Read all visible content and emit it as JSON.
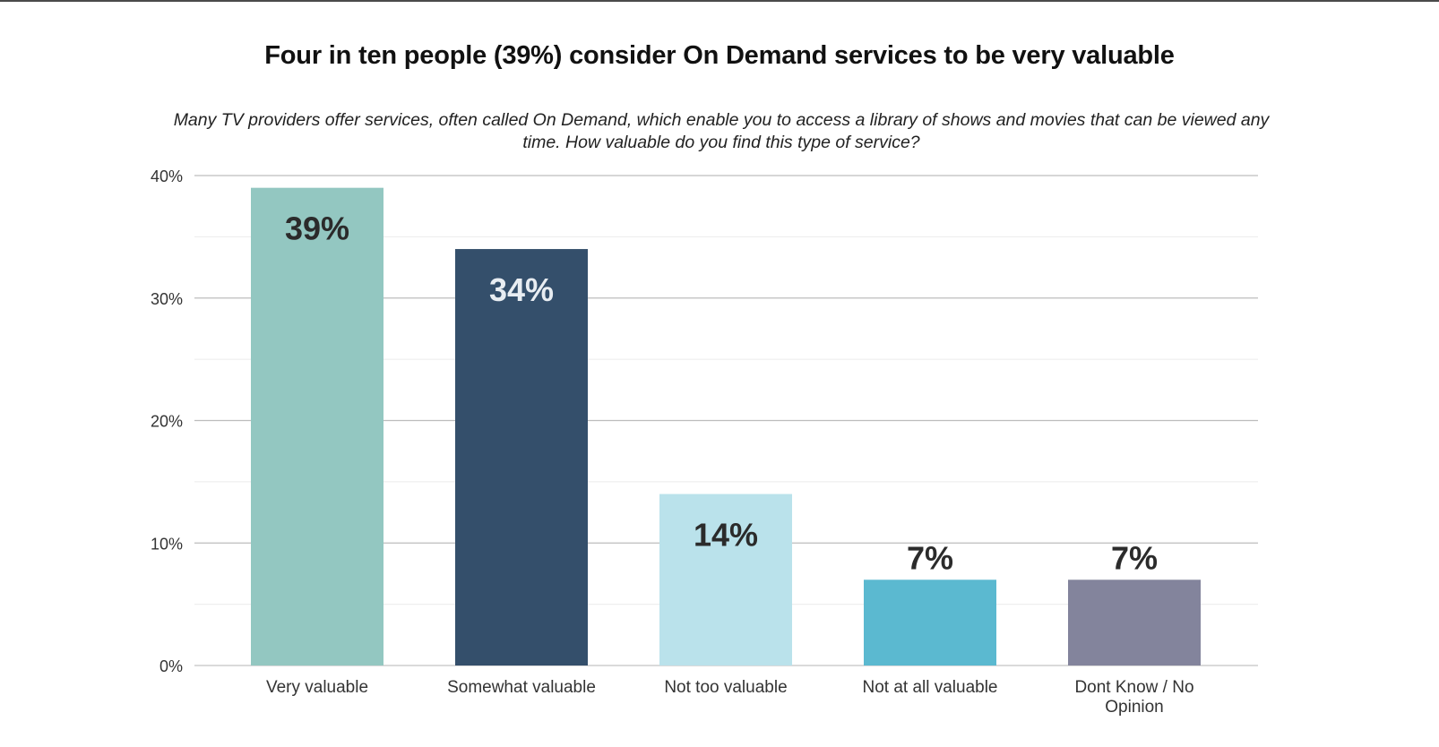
{
  "chart_data": {
    "type": "bar",
    "title": "Four in ten people (39%) consider On Demand services to be very valuable",
    "subtitle": "Many TV providers offer services, often called On Demand, which enable you to access a library of shows and movies that can be viewed any time. How valuable do you find this type of service?",
    "xlabel": "",
    "ylabel": "",
    "categories": [
      "Very valuable",
      "Somewhat valuable",
      "Not too valuable",
      "Not at all valuable",
      "Dont Know / No Opinion"
    ],
    "category_lines": [
      [
        "Very valuable"
      ],
      [
        "Somewhat valuable"
      ],
      [
        "Not too valuable"
      ],
      [
        "Not at all valuable"
      ],
      [
        "Dont Know / No",
        "Opinion"
      ]
    ],
    "values": [
      39,
      34,
      14,
      7,
      7
    ],
    "data_labels": [
      "39%",
      "34%",
      "14%",
      "7%",
      "7%"
    ],
    "colors": [
      "#93c7c1",
      "#344f6b",
      "#bae2eb",
      "#5bb9d0",
      "#83849c"
    ],
    "label_colors": [
      "#2b2b2b",
      "#e8edf2",
      "#2b2b2b",
      "#2b2b2b",
      "#2b2b2b"
    ],
    "label_position": [
      "inside",
      "inside",
      "inside",
      "above",
      "above"
    ],
    "ylim": [
      0,
      40
    ],
    "yticks": [
      0,
      10,
      20,
      30,
      40
    ],
    "ytick_labels": [
      "0%",
      "10%",
      "20%",
      "30%",
      "40%"
    ],
    "minor_gridlines": [
      5,
      15,
      25,
      35
    ],
    "grid": true,
    "legend": "none"
  }
}
